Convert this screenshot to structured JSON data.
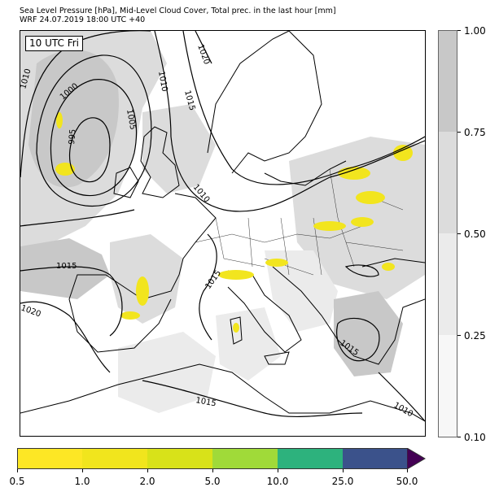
{
  "title_line1": "Sea Level Pressure [hPa], Mid-Level Cloud Cover, Total prec. in the last hour [mm]",
  "title_line2": "WRF 24.07.2019 18:00 UTC +40",
  "time_label": "10 UTC Fri",
  "isobar_labels": [
    {
      "id": "p1020a",
      "text": "1020"
    },
    {
      "id": "p1010a",
      "text": "1010"
    },
    {
      "id": "p1000",
      "text": "1000"
    },
    {
      "id": "p995",
      "text": "995"
    },
    {
      "id": "p1010b",
      "text": "1010"
    },
    {
      "id": "p1005",
      "text": "1005"
    },
    {
      "id": "p1015a",
      "text": "1015"
    },
    {
      "id": "p1010c",
      "text": "1010"
    },
    {
      "id": "p1015b",
      "text": "1015"
    },
    {
      "id": "p1020b",
      "text": "1020"
    },
    {
      "id": "p1015c",
      "text": "1015"
    },
    {
      "id": "p1015d",
      "text": "1015"
    },
    {
      "id": "p1015e",
      "text": "1015"
    },
    {
      "id": "p1010d",
      "text": "1010"
    }
  ],
  "cloud_colorbar": {
    "labels": [
      "0.10",
      "0.25",
      "0.50",
      "0.75",
      "1.00"
    ],
    "colors": [
      "#f7f7f7",
      "#ebebeb",
      "#dcdcdc",
      "#c8c8c8"
    ]
  },
  "precip_colorbar": {
    "labels": [
      "0.5",
      "1.0",
      "2.0",
      "5.0",
      "10.0",
      "25.0",
      "50.0"
    ],
    "colors": [
      "#fde725",
      "#f1e51d",
      "#d8e219",
      "#a0da39",
      "#2db27d",
      "#3b528b",
      "#440154"
    ]
  },
  "colors": {
    "precip": "#f2e51e",
    "cloud_dark": "#c8c8c8",
    "cloud_mid": "#dcdcdc",
    "cloud_light": "#ebebeb"
  }
}
